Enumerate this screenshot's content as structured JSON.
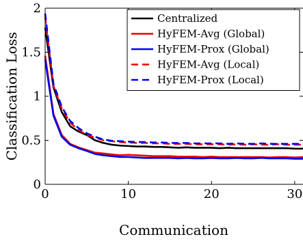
{
  "chart_data": {
    "type": "line",
    "xlabel": "Communication",
    "ylabel": "Classification Loss",
    "xlim": [
      0,
      31
    ],
    "ylim": [
      0,
      2
    ],
    "xticks": [
      0,
      10,
      20,
      30
    ],
    "yticks": [
      0,
      0.5,
      1,
      1.5,
      2
    ],
    "xtick_labels": [
      "0",
      "10",
      "20",
      "30"
    ],
    "ytick_labels": [
      "0",
      "0.5",
      "1",
      "1.5",
      "2"
    ],
    "grid": false,
    "legend_position": "top-right",
    "series": [
      {
        "name": "Centralized",
        "color": "#000000",
        "dash": "solid",
        "x": [
          0,
          1,
          2,
          3,
          4,
          5,
          6,
          7,
          8,
          9,
          10,
          11,
          12,
          13,
          14,
          15,
          16,
          17,
          18,
          19,
          20,
          21,
          22,
          23,
          24,
          25,
          26,
          27,
          28,
          29,
          30,
          31
        ],
        "y": [
          1.78,
          1.1,
          0.82,
          0.66,
          0.6,
          0.56,
          0.5,
          0.47,
          0.45,
          0.44,
          0.435,
          0.43,
          0.43,
          0.425,
          0.425,
          0.42,
          0.415,
          0.42,
          0.415,
          0.415,
          0.415,
          0.41,
          0.415,
          0.41,
          0.41,
          0.41,
          0.41,
          0.41,
          0.41,
          0.41,
          0.405,
          0.405
        ]
      },
      {
        "name": "HyFEM-Avg (Global)",
        "color": "#ee0000",
        "dash": "solid",
        "x": [
          0,
          1,
          2,
          3,
          4,
          5,
          6,
          7,
          8,
          9,
          10,
          11,
          12,
          13,
          14,
          15,
          16,
          17,
          18,
          19,
          20,
          21,
          22,
          23,
          24,
          25,
          26,
          27,
          28,
          29,
          30,
          31
        ],
        "y": [
          1.46,
          0.8,
          0.56,
          0.46,
          0.42,
          0.39,
          0.36,
          0.35,
          0.34,
          0.33,
          0.335,
          0.33,
          0.325,
          0.32,
          0.32,
          0.32,
          0.315,
          0.315,
          0.315,
          0.31,
          0.315,
          0.31,
          0.31,
          0.31,
          0.31,
          0.31,
          0.31,
          0.305,
          0.31,
          0.31,
          0.305,
          0.31
        ]
      },
      {
        "name": "HyFEM-Prox (Global)",
        "color": "#0000ee",
        "dash": "solid",
        "x": [
          0,
          1,
          2,
          3,
          4,
          5,
          6,
          7,
          8,
          9,
          10,
          11,
          12,
          13,
          14,
          15,
          16,
          17,
          18,
          19,
          20,
          21,
          22,
          23,
          24,
          25,
          26,
          27,
          28,
          29,
          30,
          31
        ],
        "y": [
          1.42,
          0.78,
          0.54,
          0.45,
          0.41,
          0.38,
          0.345,
          0.33,
          0.32,
          0.31,
          0.31,
          0.305,
          0.3,
          0.3,
          0.3,
          0.3,
          0.295,
          0.3,
          0.295,
          0.295,
          0.3,
          0.295,
          0.295,
          0.3,
          0.295,
          0.295,
          0.3,
          0.295,
          0.295,
          0.295,
          0.29,
          0.29
        ]
      },
      {
        "name": "HyFEM-Avg (Local)",
        "color": "#ee0000",
        "dash": "dashed",
        "x": [
          0,
          1,
          2,
          3,
          4,
          5,
          6,
          7,
          8,
          9,
          10,
          11,
          12,
          13,
          14,
          15,
          16,
          17,
          18,
          19,
          20,
          21,
          22,
          23,
          24,
          25,
          26,
          27,
          28,
          29,
          30,
          31
        ],
        "y": [
          1.9,
          1.12,
          0.86,
          0.7,
          0.62,
          0.56,
          0.53,
          0.5,
          0.49,
          0.48,
          0.475,
          0.47,
          0.47,
          0.465,
          0.465,
          0.46,
          0.46,
          0.46,
          0.455,
          0.455,
          0.455,
          0.455,
          0.45,
          0.455,
          0.45,
          0.455,
          0.45,
          0.45,
          0.455,
          0.45,
          0.45,
          0.45
        ]
      },
      {
        "name": "HyFEM-Prox (Local)",
        "color": "#0000ee",
        "dash": "dashed",
        "x": [
          0,
          1,
          2,
          3,
          4,
          5,
          6,
          7,
          8,
          9,
          10,
          11,
          12,
          13,
          14,
          15,
          16,
          17,
          18,
          19,
          20,
          21,
          22,
          23,
          24,
          25,
          26,
          27,
          28,
          29,
          30,
          31
        ],
        "y": [
          1.94,
          1.14,
          0.88,
          0.72,
          0.64,
          0.58,
          0.54,
          0.51,
          0.495,
          0.49,
          0.485,
          0.48,
          0.48,
          0.475,
          0.475,
          0.47,
          0.47,
          0.47,
          0.465,
          0.465,
          0.465,
          0.465,
          0.46,
          0.465,
          0.46,
          0.46,
          0.465,
          0.46,
          0.46,
          0.46,
          0.46,
          0.46
        ]
      }
    ]
  }
}
